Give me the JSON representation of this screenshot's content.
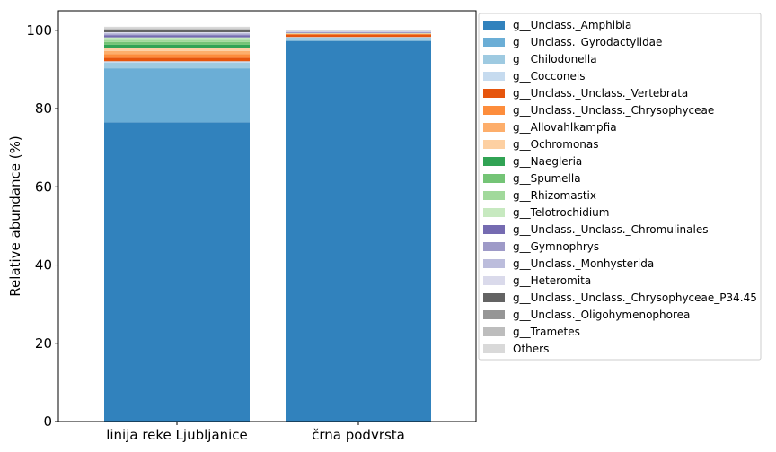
{
  "chart_data": {
    "type": "bar",
    "stacked": true,
    "categories": [
      "linija reke Ljubljanice",
      "črna podvrsta"
    ],
    "ylabel": "Relative abundance (%)",
    "xlabel": "",
    "ylim": [
      0,
      105
    ],
    "yticks": [
      0,
      20,
      40,
      60,
      80,
      100
    ],
    "grid": false,
    "legend_position": "right-outside",
    "series": [
      {
        "name": "g__Unclass._Amphibia",
        "color": "#3182bd",
        "values": [
          76.5,
          97.3
        ]
      },
      {
        "name": "g__Unclass._Gyrodactylidae",
        "color": "#6baed6",
        "values": [
          13.8,
          0.0
        ]
      },
      {
        "name": "g__Chilodonella",
        "color": "#9ecae1",
        "values": [
          1.4,
          0.9
        ]
      },
      {
        "name": "g__Cocconeis",
        "color": "#c6dbef",
        "values": [
          0.4,
          0.1
        ]
      },
      {
        "name": "g__Unclass._Unclass._Vertebrata",
        "color": "#e6550d",
        "values": [
          0.9,
          0.6
        ]
      },
      {
        "name": "g__Unclass._Unclass._Chrysophyceae",
        "color": "#fd8d3c",
        "values": [
          0.9,
          0.2
        ]
      },
      {
        "name": "g__Allovahlkampfia",
        "color": "#fdae6b",
        "values": [
          0.8,
          0.0
        ]
      },
      {
        "name": "g__Ochromonas",
        "color": "#fdd0a2",
        "values": [
          0.8,
          0.1
        ]
      },
      {
        "name": "g__Naegleria",
        "color": "#31a354",
        "values": [
          0.8,
          0.0
        ]
      },
      {
        "name": "g__Spumella",
        "color": "#74c476",
        "values": [
          0.7,
          0.0
        ]
      },
      {
        "name": "g__Rhizomastix",
        "color": "#a1d99b",
        "values": [
          0.6,
          0.1
        ]
      },
      {
        "name": "g__Telotrochidium",
        "color": "#c7e9c0",
        "values": [
          0.6,
          0.0
        ]
      },
      {
        "name": "g__Unclass._Unclass._Chromulinales",
        "color": "#756bb1",
        "values": [
          0.5,
          0.1
        ]
      },
      {
        "name": "g__Gymnophrys",
        "color": "#9e9ac8",
        "values": [
          0.3,
          0.1
        ]
      },
      {
        "name": "g__Unclass._Monhysterida",
        "color": "#bcbddc",
        "values": [
          0.3,
          0.1
        ]
      },
      {
        "name": "g__Heteromita",
        "color": "#dadaeb",
        "values": [
          0.2,
          0.2
        ]
      },
      {
        "name": "g__Unclass._Unclass._Chrysophyceae_P34.45",
        "color": "#636363",
        "values": [
          0.5,
          0.0
        ]
      },
      {
        "name": "g__Unclass._Oligohymenophorea",
        "color": "#969696",
        "values": [
          0.2,
          0.0
        ]
      },
      {
        "name": "g__Trametes",
        "color": "#bdbdbd",
        "values": [
          0.3,
          0.1
        ]
      },
      {
        "name": "Others",
        "color": "#d9d9d9",
        "values": [
          0.4,
          0.1
        ]
      }
    ]
  }
}
